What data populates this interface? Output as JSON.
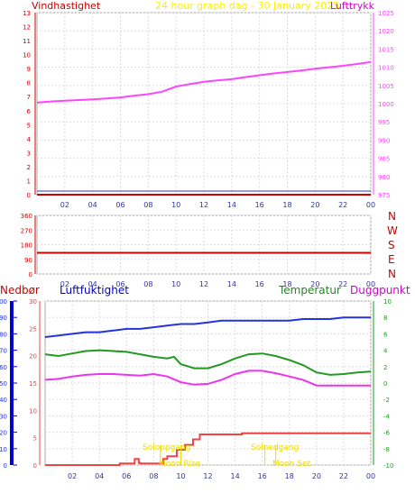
{
  "header": {
    "left_label": "Vindhastighet",
    "center_label": "24 hour graph dag - 30 January 2025",
    "right_label": "Lufttrykk"
  },
  "wind_labels": [
    "N",
    "W",
    "S",
    "E",
    "N"
  ],
  "bottom_header": {
    "rain": "Nedbør",
    "humidity": "Luftfuktighet",
    "temperature": "Temperatur",
    "dewpoint": "Duggpunkt"
  },
  "annotations": {
    "sunrise": "Soloppgang",
    "sunset": "Solnedgang",
    "moonrise": "Moon Rise",
    "moonset": "Moon Set"
  },
  "colors": {
    "wind": "#cc0000",
    "pressure": "#ff44ff",
    "title": "#ffee00",
    "humidity": "#2233dd",
    "temperature": "#229922",
    "dewpoint": "#ee33ee",
    "rain": "#ee4444",
    "direction": "#cc0000",
    "rain_axis": "#0000cc"
  },
  "chart_data": [
    {
      "type": "line",
      "x_ticks": [
        "02",
        "04",
        "06",
        "08",
        "10",
        "12",
        "14",
        "16",
        "18",
        "20",
        "22",
        "00"
      ],
      "xlim": [
        0,
        24
      ],
      "y_left": {
        "label": "Vindhastighet",
        "ylim": [
          0,
          13
        ],
        "ticks": [
          0,
          1,
          2,
          3,
          4,
          5,
          6,
          7,
          8,
          9,
          10,
          11,
          12,
          13
        ]
      },
      "y_right": {
        "label": "Lufttrykk",
        "ylim": [
          975,
          1025
        ],
        "ticks": [
          975,
          980,
          985,
          990,
          995,
          1000,
          1005,
          1010,
          1015,
          1020,
          1025
        ]
      },
      "series": [
        {
          "name": "Vindhastighet",
          "axis": "left",
          "x": [
            0,
            24
          ],
          "values": [
            0,
            0
          ]
        },
        {
          "name": "Lufttrykk",
          "axis": "right",
          "x": [
            0,
            1,
            2,
            3,
            4,
            5,
            6,
            7,
            8,
            9,
            10,
            11,
            12,
            13,
            14,
            15,
            16,
            17,
            18,
            19,
            20,
            21,
            22,
            23,
            24
          ],
          "values": [
            1000.3,
            1000.6,
            1000.8,
            1001.0,
            1001.2,
            1001.4,
            1001.7,
            1002.2,
            1002.6,
            1003.3,
            1004.7,
            1005.4,
            1006.0,
            1006.4,
            1006.7,
            1007.3,
            1007.8,
            1008.3,
            1008.7,
            1009.1,
            1009.6,
            1010.0,
            1010.4,
            1010.9,
            1011.4
          ]
        }
      ]
    },
    {
      "type": "line",
      "x_ticks": [
        "02",
        "04",
        "06",
        "08",
        "10",
        "12",
        "14",
        "16",
        "18",
        "20",
        "22",
        "00"
      ],
      "xlim": [
        0,
        24
      ],
      "y_left": {
        "ylim": [
          0,
          360
        ],
        "ticks": [
          0,
          90,
          180,
          270,
          360
        ]
      },
      "series": [
        {
          "name": "Vindretning",
          "x": [
            0,
            24
          ],
          "values": [
            130,
            130
          ]
        }
      ]
    },
    {
      "type": "line",
      "x_ticks": [
        "02",
        "04",
        "06",
        "08",
        "10",
        "12",
        "14",
        "16",
        "18",
        "20",
        "22",
        "00"
      ],
      "xlim": [
        0,
        24
      ],
      "axes": {
        "rain": {
          "label": "Nedbør",
          "ylim": [
            0,
            30
          ],
          "ticks": [
            0,
            5,
            10,
            15,
            20,
            25,
            30
          ]
        },
        "humidity": {
          "label": "Luftfuktighet",
          "ylim": [
            0,
            100
          ],
          "ticks": [
            0,
            10,
            20,
            30,
            40,
            50,
            60,
            70,
            80,
            90,
            100
          ]
        },
        "temperature": {
          "label": "Temperatur",
          "ylim": [
            -10,
            10
          ],
          "ticks": [
            -10,
            -8,
            -6,
            -4,
            -2,
            0,
            2,
            4,
            6,
            8,
            10
          ]
        }
      },
      "series": [
        {
          "name": "Luftfuktighet",
          "axis": "humidity",
          "x": [
            0,
            1,
            2,
            3,
            4,
            5,
            6,
            7,
            8,
            9,
            10,
            11,
            12,
            13,
            14,
            15,
            16,
            17,
            18,
            19,
            20,
            21,
            22,
            23,
            24
          ],
          "values": [
            78,
            79,
            80,
            81,
            81,
            82,
            83,
            83,
            84,
            85,
            86,
            86,
            87,
            88,
            88,
            88,
            88,
            88,
            88,
            89,
            89,
            89,
            90,
            90,
            90
          ]
        },
        {
          "name": "Temperatur",
          "axis": "temperature",
          "x": [
            0,
            1,
            2,
            3,
            4,
            5,
            6,
            7,
            8,
            9,
            9.5,
            10,
            11,
            12,
            13,
            14,
            15,
            16,
            17,
            18,
            19,
            20,
            21,
            22,
            23,
            24
          ],
          "values": [
            3.5,
            3.3,
            3.6,
            3.9,
            4.0,
            3.9,
            3.8,
            3.5,
            3.2,
            3.0,
            3.2,
            2.3,
            1.8,
            1.8,
            2.3,
            3.0,
            3.5,
            3.6,
            3.3,
            2.8,
            2.2,
            1.3,
            1.0,
            1.1,
            1.3,
            1.4
          ]
        },
        {
          "name": "Duggpunkt",
          "axis": "temperature",
          "x": [
            0,
            1,
            2,
            3,
            4,
            5,
            6,
            7,
            8,
            9,
            10,
            11,
            12,
            13,
            14,
            15,
            16,
            17,
            18,
            19,
            20,
            21,
            22,
            23,
            24
          ],
          "values": [
            0.4,
            0.5,
            0.8,
            1.0,
            1.1,
            1.1,
            1.0,
            0.9,
            1.1,
            0.8,
            0.1,
            -0.2,
            -0.1,
            0.4,
            1.1,
            1.5,
            1.5,
            1.2,
            0.8,
            0.4,
            -0.3,
            -0.3,
            -0.3,
            -0.3,
            -0.3
          ]
        },
        {
          "name": "Nedbør",
          "axis": "rain",
          "step": true,
          "x": [
            0,
            5.5,
            6.6,
            6.9,
            7.0,
            8.7,
            9.0,
            9.7,
            10.3,
            10.9,
            11.4,
            11.8,
            12.4,
            14.5,
            15.5,
            18,
            20,
            24
          ],
          "values": [
            0,
            0.3,
            1.1,
            0.4,
            0.3,
            1.1,
            1.6,
            2.8,
            3.7,
            4.7,
            5.6,
            5.6,
            5.6,
            5.8,
            5.8,
            5.8,
            5.8,
            5.8
          ]
        }
      ],
      "annotations": [
        {
          "label": "Soloppgang",
          "x": 8.5
        },
        {
          "label": "Moon Rise",
          "x": 10.0
        },
        {
          "label": "Solnedgang",
          "x": 16.2
        },
        {
          "label": "Moon Set",
          "x": 17.0
        }
      ]
    }
  ]
}
